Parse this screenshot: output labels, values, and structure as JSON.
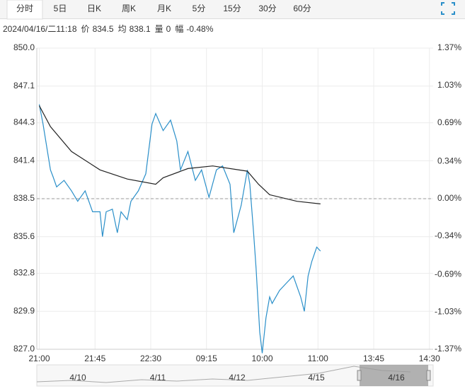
{
  "tabs": [
    "分时",
    "5日",
    "日K",
    "周K",
    "月K",
    "5分",
    "15分",
    "30分",
    "60分"
  ],
  "info": {
    "time": "2024/04/16/二11:18",
    "items": [
      {
        "label": "价",
        "value": "834.5"
      },
      {
        "label": "均",
        "value": "838.1"
      },
      {
        "label": "量",
        "value": "0"
      },
      {
        "label": "幅",
        "value": "-0.48%"
      }
    ]
  },
  "chart_data": {
    "type": "line",
    "xlim": [
      -2,
      318
    ],
    "xticks": [
      {
        "value": 0,
        "label": "21:00"
      },
      {
        "value": 45,
        "label": "21:45"
      },
      {
        "value": 90,
        "label": "22:30"
      },
      {
        "value": 135,
        "label": "09:15"
      },
      {
        "value": 180,
        "label": "10:00"
      },
      {
        "value": 225,
        "label": "11:00"
      },
      {
        "value": 270,
        "label": "13:45"
      },
      {
        "value": 315,
        "label": "14:30"
      }
    ],
    "ylim": [
      827.0,
      850.0
    ],
    "yticks": [
      {
        "value": 850.0,
        "label": "850.0"
      },
      {
        "value": 847.1,
        "label": "847.1"
      },
      {
        "value": 844.3,
        "label": "844.3"
      },
      {
        "value": 841.4,
        "label": "841.4"
      },
      {
        "value": 838.5,
        "label": "838.5"
      },
      {
        "value": 835.6,
        "label": "835.6"
      },
      {
        "value": 832.8,
        "label": "832.8"
      },
      {
        "value": 829.9,
        "label": "829.9"
      },
      {
        "value": 827.0,
        "label": "827.0"
      }
    ],
    "y2lim": [
      -1.37,
      1.37
    ],
    "y2ticks": [
      {
        "value": 1.37,
        "label": "1.37%"
      },
      {
        "value": 1.03,
        "label": "1.03%"
      },
      {
        "value": 0.69,
        "label": "0.69%"
      },
      {
        "value": 0.34,
        "label": "0.34%"
      },
      {
        "value": 0.0,
        "label": "0.00%"
      },
      {
        "value": -0.34,
        "label": "-0.34%"
      },
      {
        "value": -0.69,
        "label": "-0.69%"
      },
      {
        "value": -1.03,
        "label": "-1.03%"
      },
      {
        "value": -1.37,
        "label": "-1.37%"
      }
    ],
    "reference_line": 838.5,
    "up_color": "#e0312b",
    "down_color": "#1f9a3a",
    "flat_color": "#555555",
    "grid": true,
    "series": [
      {
        "color": "#2a8fc9",
        "x": [
          0,
          3,
          9,
          11,
          14,
          20,
          26,
          31,
          37,
          43,
          49,
          51,
          54,
          59,
          63,
          66,
          71,
          74,
          80,
          86,
          91,
          94,
          100,
          106,
          111,
          114,
          120,
          126,
          131,
          137,
          143,
          148,
          154,
          157,
          163,
          168,
          170,
          173,
          175,
          178,
          180,
          183,
          186,
          188,
          194,
          200,
          205,
          211,
          214,
          217,
          220,
          224,
          227
        ],
        "values": [
          845.7,
          844.2,
          840.7,
          840.2,
          839.4,
          839.9,
          839.1,
          838.3,
          839.1,
          837.5,
          837.5,
          835.6,
          837.5,
          837.7,
          835.9,
          837.5,
          836.9,
          838.3,
          839.1,
          840.4,
          844.2,
          845.0,
          843.7,
          844.5,
          842.9,
          840.7,
          842.1,
          839.9,
          840.7,
          838.6,
          840.7,
          841.0,
          839.6,
          835.9,
          838.0,
          840.7,
          839.6,
          835.9,
          833.2,
          828.3,
          826.7,
          829.4,
          831.0,
          830.5,
          831.5,
          832.1,
          832.6,
          831.0,
          829.9,
          832.6,
          833.7,
          834.8,
          834.5
        ]
      },
      {
        "color": "#222222",
        "x": [
          0,
          9,
          26,
          49,
          71,
          94,
          100,
          120,
          140,
          168,
          177,
          186,
          208,
          227
        ],
        "values": [
          845.6,
          844.0,
          842.1,
          840.7,
          840.0,
          839.6,
          840.1,
          840.8,
          841.0,
          840.6,
          839.6,
          838.8,
          838.3,
          838.1
        ]
      }
    ],
    "navigator": {
      "labels": [
        "4/10",
        "4/11",
        "4/12",
        "4/15",
        "4/16"
      ]
    }
  }
}
